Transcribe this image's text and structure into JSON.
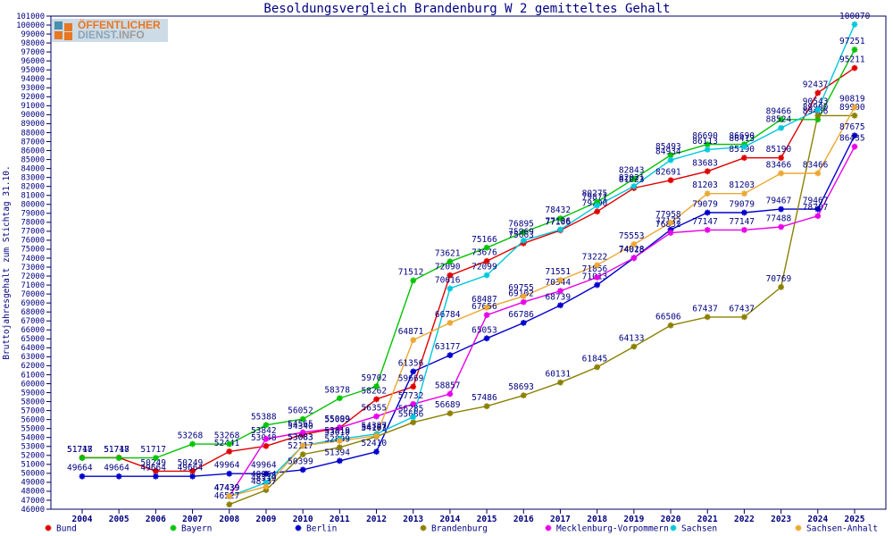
{
  "title": "Besoldungsvergleich Brandenburg W 2 gemitteltes Gehalt",
  "logo": {
    "line1": "ÖFFENTLICHER",
    "line2_part1": "DIENST.",
    "line2_part2": "INFO"
  },
  "y_axis_title": "Bruttojahresgehalt zum Stichtag 31.10.",
  "colors": {
    "text": "#000080",
    "axis": "#000060",
    "background": "#ffffff"
  },
  "chart_data": {
    "type": "line",
    "title": "Besoldungsvergleich Brandenburg W 2 gemitteltes Gehalt",
    "xlabel": "",
    "ylabel": "Bruttojahresgehalt zum Stichtag 31.10.",
    "x": [
      2004,
      2005,
      2006,
      2007,
      2008,
      2009,
      2010,
      2011,
      2012,
      2013,
      2014,
      2015,
      2016,
      2017,
      2018,
      2019,
      2020,
      2021,
      2022,
      2023,
      2024,
      2025
    ],
    "ylim": [
      46000,
      101000
    ],
    "y_tick_step": 1000,
    "grid": false,
    "legend_position": "bottom",
    "point_labels": true,
    "series": [
      {
        "name": "Bund",
        "color": "#e00000",
        "values": [
          51748,
          51748,
          50249,
          50249,
          52441,
          53048,
          54340,
          55089,
          58262,
          59669,
          72090,
          73676,
          75663,
          77106,
          79200,
          81823,
          82691,
          83683,
          85190,
          85190,
          92437,
          95211
        ]
      },
      {
        "name": "Bayern",
        "color": "#00c400",
        "values": [
          51717,
          51717,
          51717,
          53268,
          53268,
          55388,
          56052,
          58378,
          59702,
          71512,
          73621,
          75166,
          76895,
          78432,
          80275,
          82843,
          85493,
          86690,
          86690,
          89466,
          89466,
          97251
        ]
      },
      {
        "name": "Berlin",
        "color": "#0000cc",
        "values": [
          49664,
          49664,
          49664,
          49664,
          49964,
          49964,
          50399,
          51394,
          52410,
          61356,
          63177,
          65053,
          66786,
          68739,
          71013,
          74018,
          77172,
          79079,
          79079,
          79467,
          79467,
          87675
        ]
      },
      {
        "name": "Brandenburg",
        "color": "#8b8000",
        "values": [
          null,
          null,
          null,
          null,
          46527,
          48137,
          52117,
          52899,
          54103,
          55686,
          56689,
          57486,
          58693,
          60131,
          61845,
          64133,
          66506,
          67437,
          67437,
          70769,
          89900,
          89900
        ]
      },
      {
        "name": "Mecklenburg-Vorpommern",
        "color": "#e800e8",
        "values": [
          null,
          null,
          null,
          null,
          47439,
          53842,
          54565,
          55099,
          56355,
          57732,
          58857,
          67656,
          69102,
          70344,
          71856,
          74028,
          76832,
          77147,
          77147,
          77488,
          78707,
          86435
        ]
      },
      {
        "name": "Sachsen",
        "color": "#00c8dc",
        "values": [
          null,
          null,
          null,
          null,
          47439,
          48964,
          53083,
          53819,
          54387,
          56285,
          70616,
          72099,
          75969,
          77186,
          79871,
          82021,
          84934,
          86113,
          86413,
          88524,
          90543,
          100070
        ]
      },
      {
        "name": "Sachsen-Anhalt",
        "color": "#eba833",
        "values": [
          null,
          null,
          null,
          null,
          47439,
          48519,
          53083,
          53610,
          54187,
          64871,
          66784,
          68487,
          69755,
          71551,
          73222,
          75553,
          77958,
          81203,
          81203,
          83466,
          83466,
          90819
        ]
      }
    ]
  }
}
